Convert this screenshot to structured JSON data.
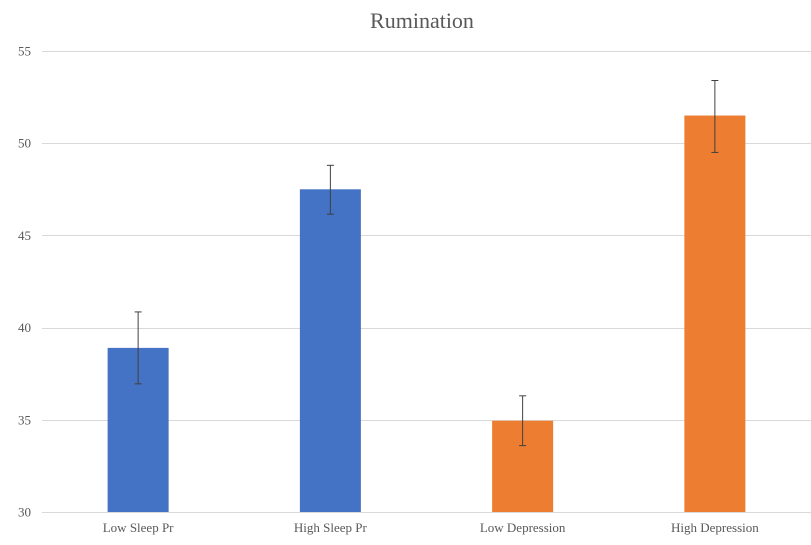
{
  "chart_data": {
    "type": "bar",
    "title": "Rumination",
    "categories": [
      "Low Sleep Pr",
      "High Sleep Pr",
      "Low Depression",
      "High Depression"
    ],
    "values": [
      38.9,
      47.5,
      34.95,
      51.5
    ],
    "error_low": [
      36.95,
      46.15,
      33.6,
      49.5
    ],
    "error_high": [
      40.85,
      48.8,
      36.3,
      53.4
    ],
    "colors": [
      "#4472c4",
      "#4472c4",
      "#ed7d31",
      "#ed7d31"
    ],
    "ylim": [
      30,
      55
    ],
    "yticks": [
      30,
      35,
      40,
      45,
      50,
      55
    ],
    "xlabel": "",
    "ylabel": "",
    "grid": true
  }
}
